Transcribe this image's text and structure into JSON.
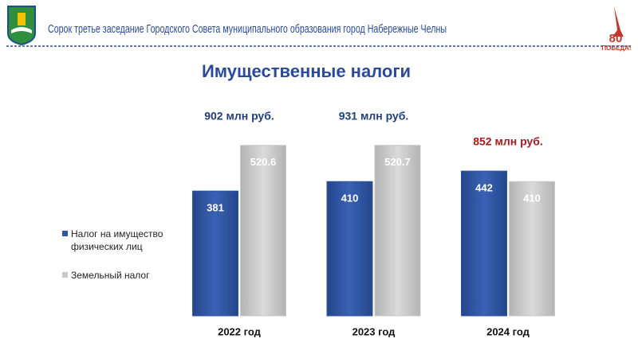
{
  "header": {
    "title": "Сорок третье заседание Городского Совета муниципального образования город Набережные Челны",
    "badge_number": "80",
    "badge_text": "ПОБЕДА!"
  },
  "chart_data": {
    "type": "bar",
    "title": "Имущественные налоги",
    "categories": [
      "2022 год",
      "2023 год",
      "2024 год"
    ],
    "series": [
      {
        "name": "Налог на имущество физических лиц",
        "color": "#2f55a4",
        "values": [
          381,
          410,
          442
        ]
      },
      {
        "name": "Земельный налог",
        "color": "#c9c9c9",
        "values": [
          520.6,
          520.7,
          410
        ]
      }
    ],
    "annotations": [
      {
        "text": "902 млн руб.",
        "color": "#1f3f7a"
      },
      {
        "text": "931 млн руб.",
        "color": "#1f3f7a"
      },
      {
        "text": "852 млн руб.",
        "color": "#a31d1d"
      }
    ],
    "ylim": [
      0,
      600
    ],
    "legend": "left"
  }
}
